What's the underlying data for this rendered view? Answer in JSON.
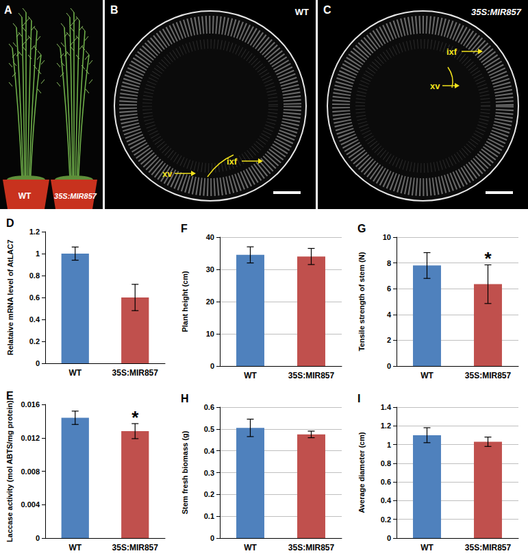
{
  "images": [
    {
      "panel": "A",
      "labels": [
        "WT",
        "35S:MIR857"
      ]
    },
    {
      "panel": "B",
      "genotype": "WT",
      "annotations": [
        "xv",
        "ixf"
      ]
    },
    {
      "panel": "C",
      "genotype": "35S:MIR857",
      "annotations": [
        "ixf",
        "xv"
      ]
    }
  ],
  "chart_data": [
    {
      "panel": "D",
      "type": "bar",
      "y_label": "Relataive mRNA level of AtLAC7",
      "categories": [
        "WT",
        "35S:MIR857"
      ],
      "values": [
        1.0,
        0.6
      ],
      "errors": [
        0.06,
        0.12
      ],
      "colors": [
        "#4f81bd",
        "#c0504d"
      ],
      "ylim": [
        0,
        1.2
      ],
      "yticks": [
        0,
        0.2,
        0.4,
        0.6,
        0.8,
        1,
        1.2
      ],
      "grid": false
    },
    {
      "panel": "E",
      "type": "bar",
      "y_label": "Laccase activity (mol ABTS/mg protein)",
      "categories": [
        "WT",
        "35S:MIR857"
      ],
      "values": [
        0.0144,
        0.0128
      ],
      "errors": [
        0.0008,
        0.0009
      ],
      "colors": [
        "#4f81bd",
        "#c0504d"
      ],
      "ylim": [
        0,
        0.016
      ],
      "yticks": [
        0,
        0.004,
        0.008,
        0.012,
        0.016
      ],
      "grid": false,
      "annotations": [
        {
          "category": "35S:MIR857",
          "text": "*"
        }
      ]
    },
    {
      "panel": "F",
      "type": "bar",
      "y_label": "Plant height (cm)",
      "categories": [
        "WT",
        "35S:MIR857"
      ],
      "values": [
        34.5,
        34.0
      ],
      "errors": [
        2.5,
        2.5
      ],
      "colors": [
        "#4f81bd",
        "#c0504d"
      ],
      "ylim": [
        0,
        40
      ],
      "yticks": [
        0,
        10,
        20,
        30,
        40
      ],
      "grid": true
    },
    {
      "panel": "G",
      "type": "bar",
      "y_label": "Tensile strength of stem (N)",
      "categories": [
        "WT",
        "35S:MIR857"
      ],
      "values": [
        7.8,
        6.35
      ],
      "errors": [
        1.0,
        1.5
      ],
      "colors": [
        "#4f81bd",
        "#c0504d"
      ],
      "ylim": [
        0,
        10
      ],
      "yticks": [
        0,
        2,
        4,
        6,
        8,
        10
      ],
      "grid": true,
      "annotations": [
        {
          "category": "35S:MIR857",
          "text": "*"
        }
      ]
    },
    {
      "panel": "H",
      "type": "bar",
      "y_label": "Stem fresh biomass (g)",
      "categories": [
        "WT",
        "35S:MIR857"
      ],
      "values": [
        0.505,
        0.475
      ],
      "errors": [
        0.04,
        0.015
      ],
      "colors": [
        "#4f81bd",
        "#c0504d"
      ],
      "ylim": [
        0,
        0.6
      ],
      "yticks": [
        0,
        0.1,
        0.2,
        0.3,
        0.4,
        0.5,
        0.6
      ],
      "grid": true
    },
    {
      "panel": "I",
      "type": "bar",
      "y_label": "Average diameter (cm)",
      "categories": [
        "WT",
        "35S:MIR857"
      ],
      "values": [
        1.1,
        1.03
      ],
      "errors": [
        0.08,
        0.05
      ],
      "colors": [
        "#4f81bd",
        "#c0504d"
      ],
      "ylim": [
        0,
        1.4
      ],
      "yticks": [
        0,
        0.2,
        0.4,
        0.6,
        0.8,
        1,
        1.2,
        1.4
      ],
      "grid": true
    }
  ]
}
